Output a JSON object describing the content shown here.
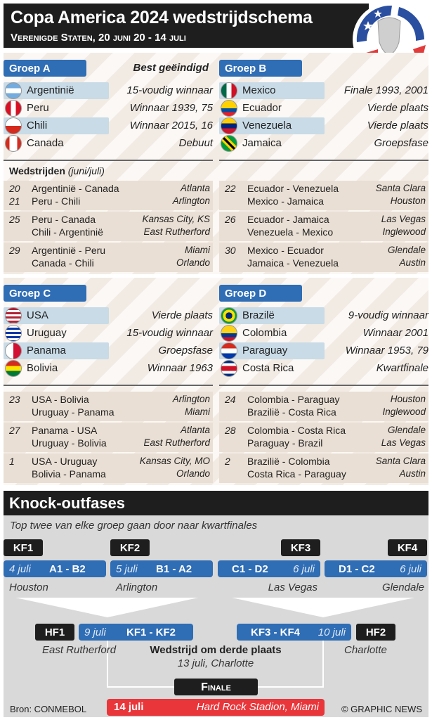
{
  "header": {
    "title": "Copa America 2024 wedstrijdschema",
    "subtitle": "Verenigde Staten, 20 juni 20 - 14 juli"
  },
  "best_label": "Best geëindigd",
  "matches_label": "Wedstrijden",
  "matches_unit": "(juni/juli)",
  "groups": [
    {
      "name": "Groep A",
      "teams": [
        {
          "name": "Argentinië",
          "note": "15-voudig winnaar",
          "flag": "argentina"
        },
        {
          "name": "Peru",
          "note": "Winnaar 1939, 75",
          "flag": "peru"
        },
        {
          "name": "Chili",
          "note": "Winnaar 2015, 16",
          "flag": "chile"
        },
        {
          "name": "Canada",
          "note": "Debuut",
          "flag": "canada"
        }
      ],
      "matches": [
        {
          "day": "20",
          "games": [
            {
              "teams": "Argentinië - Canada",
              "venue": "Atlanta"
            }
          ]
        },
        {
          "day": "21",
          "games": [
            {
              "teams": "Peru - Chili",
              "venue": "Arlington"
            }
          ]
        },
        {
          "day": "25",
          "games": [
            {
              "teams": "Peru - Canada",
              "venue": "Kansas City, KS"
            },
            {
              "teams": "Chili - Argentinië",
              "venue": "East Rutherford"
            }
          ]
        },
        {
          "day": "29",
          "games": [
            {
              "teams": "Argentinië - Peru",
              "venue": "Miami"
            },
            {
              "teams": "Canada - Chili",
              "venue": "Orlando"
            }
          ]
        }
      ]
    },
    {
      "name": "Groep B",
      "teams": [
        {
          "name": "Mexico",
          "note": "Finale 1993, 2001",
          "flag": "mexico"
        },
        {
          "name": "Ecuador",
          "note": "Vierde plaats",
          "flag": "ecuador"
        },
        {
          "name": "Venezuela",
          "note": "Vierde plaats",
          "flag": "venezuela"
        },
        {
          "name": "Jamaica",
          "note": "Groepsfase",
          "flag": "jamaica"
        }
      ],
      "matches": [
        {
          "day": "22",
          "games": [
            {
              "teams": "Ecuador - Venezuela",
              "venue": "Santa Clara"
            },
            {
              "teams": "Mexico - Jamaica",
              "venue": "Houston"
            }
          ]
        },
        {
          "day": "26",
          "games": [
            {
              "teams": "Ecuador - Jamaica",
              "venue": "Las Vegas"
            },
            {
              "teams": "Venezuela - Mexico",
              "venue": "Inglewood"
            }
          ]
        },
        {
          "day": "30",
          "games": [
            {
              "teams": "Mexico - Ecuador",
              "venue": "Glendale"
            },
            {
              "teams": "Jamaica - Venezuela",
              "venue": "Austin"
            }
          ]
        }
      ]
    },
    {
      "name": "Groep C",
      "teams": [
        {
          "name": "USA",
          "note": "Vierde plaats",
          "flag": "usa"
        },
        {
          "name": "Uruguay",
          "note": "15-voudig winnaar",
          "flag": "uruguay"
        },
        {
          "name": "Panama",
          "note": "Groepsfase",
          "flag": "panama"
        },
        {
          "name": "Bolivia",
          "note": "Winnaar 1963",
          "flag": "bolivia"
        }
      ],
      "matches": [
        {
          "day": "23",
          "games": [
            {
              "teams": "USA - Bolivia",
              "venue": "Arlington"
            },
            {
              "teams": "Uruguay - Panama",
              "venue": "Miami"
            }
          ]
        },
        {
          "day": "27",
          "games": [
            {
              "teams": "Panama - USA",
              "venue": "Atlanta"
            },
            {
              "teams": "Uruguay - Bolivia",
              "venue": "East Rutherford"
            }
          ]
        },
        {
          "day": "1",
          "games": [
            {
              "teams": "USA - Uruguay",
              "venue": "Kansas City, MO"
            },
            {
              "teams": "Bolivia - Panama",
              "venue": "Orlando"
            }
          ]
        }
      ]
    },
    {
      "name": "Groep D",
      "teams": [
        {
          "name": "Brazilë",
          "note": "9-voudig winnaar",
          "flag": "brazil"
        },
        {
          "name": "Colombia",
          "note": "Winnaar 2001",
          "flag": "colombia"
        },
        {
          "name": "Paraguay",
          "note": "Winnaar 1953, 79",
          "flag": "paraguay"
        },
        {
          "name": "Costa Rica",
          "note": "Kwartfinale",
          "flag": "costarica"
        }
      ],
      "matches": [
        {
          "day": "24",
          "games": [
            {
              "teams": "Colombia - Paraguay",
              "venue": "Houston"
            },
            {
              "teams": "Brazilië - Costa Rica",
              "venue": "Inglewood"
            }
          ]
        },
        {
          "day": "28",
          "games": [
            {
              "teams": "Colombia - Costa Rica",
              "venue": "Glendale"
            },
            {
              "teams": "Paraguay - Brazil",
              "venue": "Las Vegas"
            }
          ]
        },
        {
          "day": "2",
          "games": [
            {
              "teams": "Brazilië - Colombia",
              "venue": "Santa Clara"
            },
            {
              "teams": "Costa Rica - Paraguay",
              "venue": "Austin"
            }
          ]
        }
      ]
    }
  ],
  "knockout": {
    "title": "Knock-outfases",
    "intro": "Top twee van elke groep gaan door naar kwartfinales",
    "qf": [
      {
        "label": "KF1",
        "date": "4 juli",
        "match": "A1 - B2",
        "city": "Houston"
      },
      {
        "label": "KF2",
        "date": "5 juli",
        "match": "B1 - A2",
        "city": "Arlington"
      },
      {
        "label": "KF3",
        "date": "6 juli",
        "match": "C1 - D2",
        "city": "Las Vegas"
      },
      {
        "label": "KF4",
        "date": "6 juli",
        "match": "D1 - C2",
        "city": "Glendale"
      }
    ],
    "sf": [
      {
        "label": "HF1",
        "date": "9 juli",
        "match": "KF1 - KF2",
        "city": "East Rutherford"
      },
      {
        "label": "HF2",
        "date": "10 juli",
        "match": "KF3 - KF4",
        "city": "Charlotte"
      }
    ],
    "third": {
      "title": "Wedstrijd om derde plaats",
      "info": "13 juli, Charlotte"
    },
    "final": {
      "label": "Finale",
      "date": "14 juli",
      "venue": "Hard Rock Stadion, Miami"
    }
  },
  "footer": {
    "source": "Bron: CONMEBOL",
    "credit": "© GRAPHIC NEWS"
  },
  "colors": {
    "group_blue": "#2f6db5",
    "final_red": "#e8363a",
    "header_black": "#1e1e1e"
  }
}
